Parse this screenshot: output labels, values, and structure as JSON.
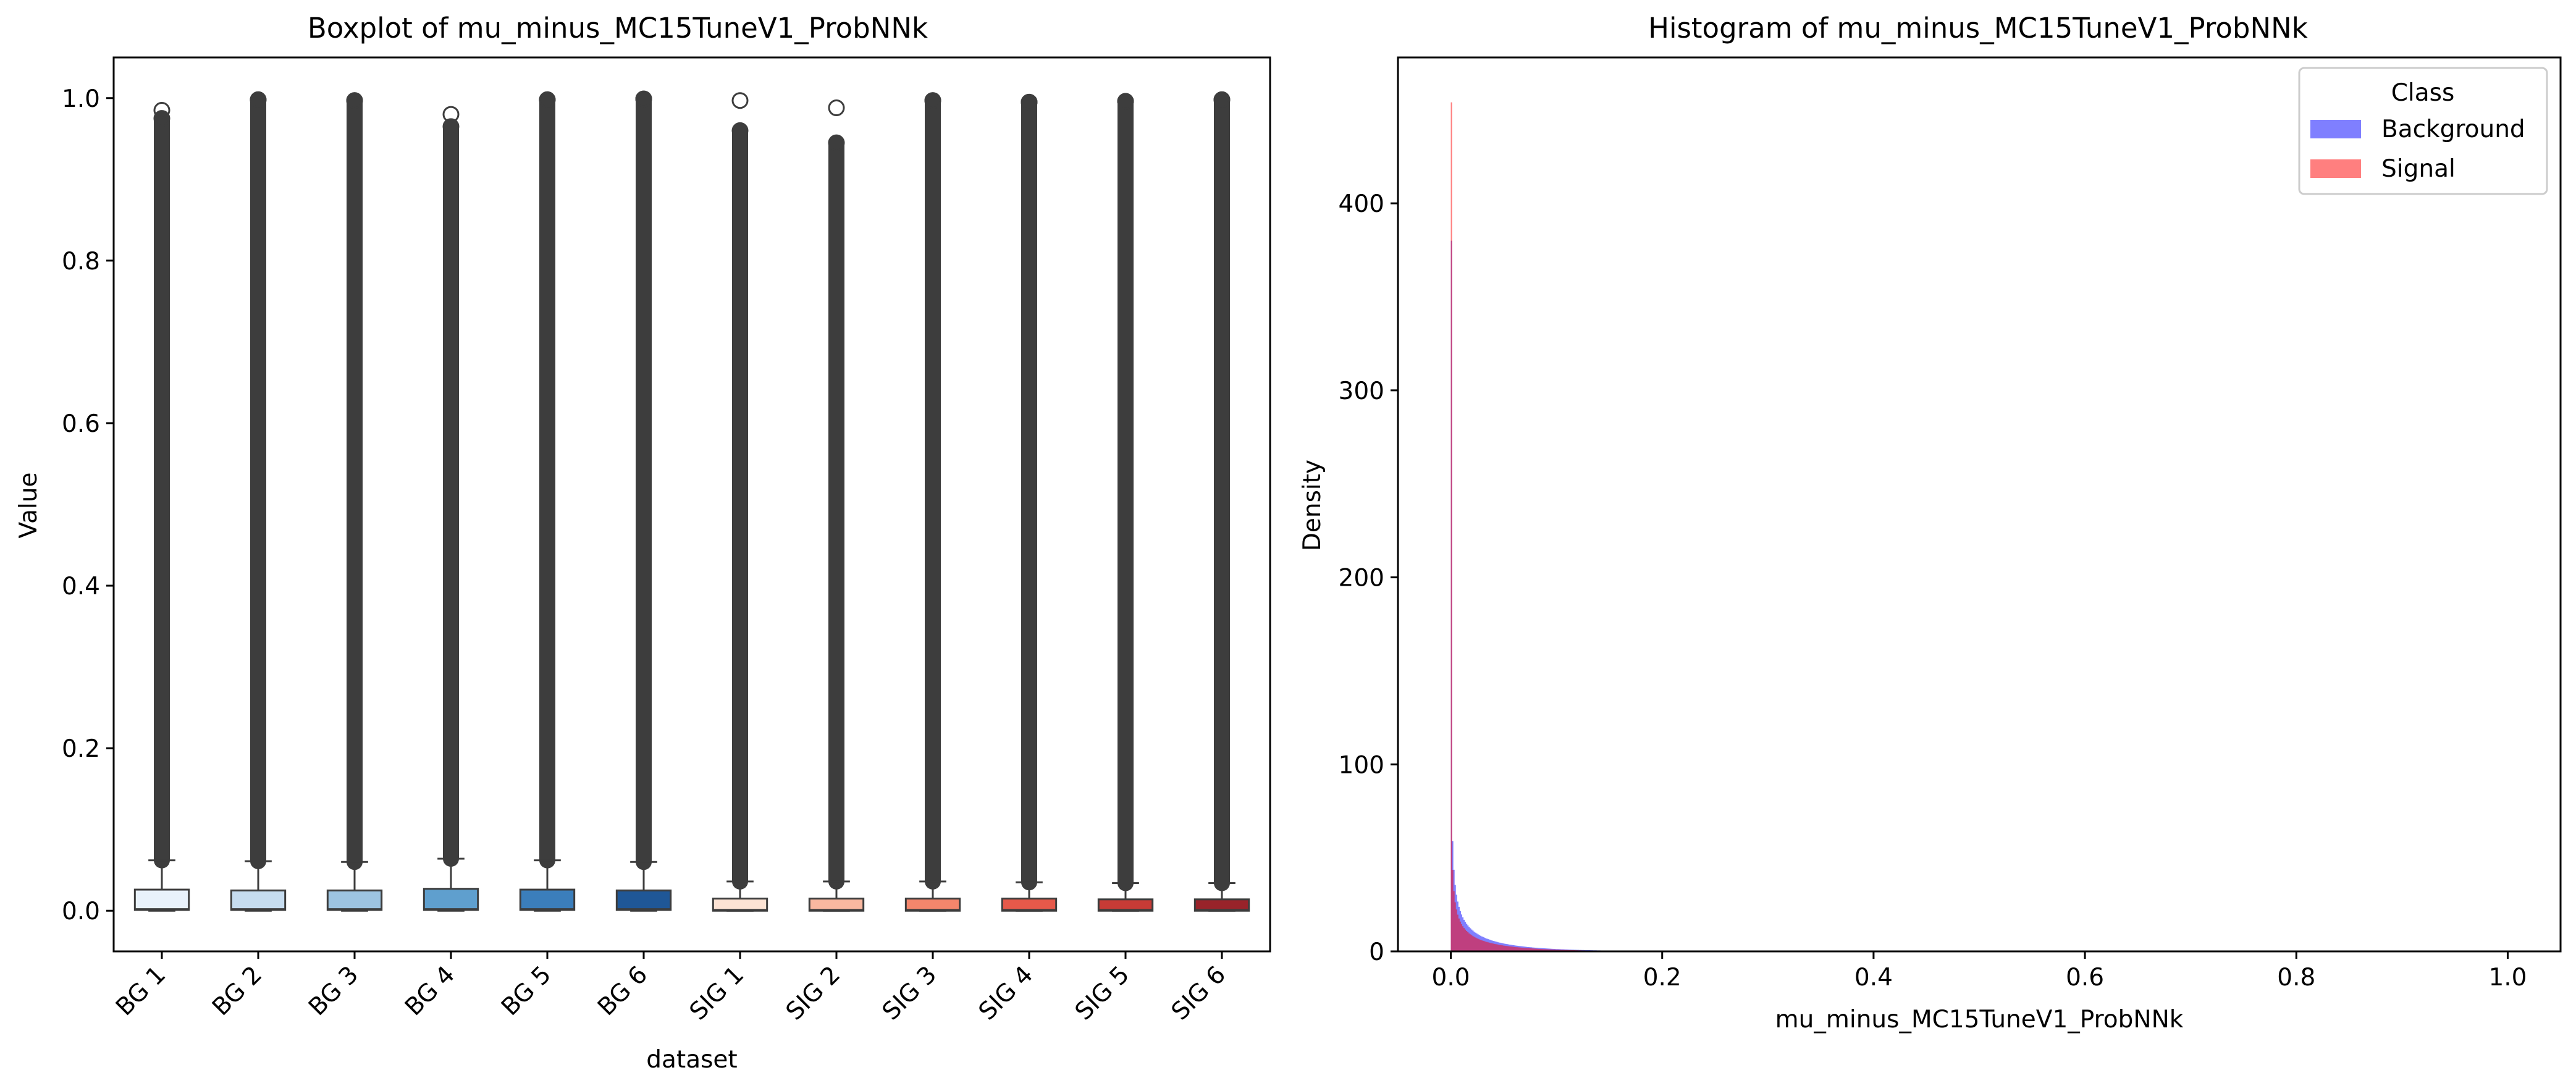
{
  "chart_data": [
    {
      "type": "boxplot",
      "title": "Boxplot of mu_minus_MC15TuneV1_ProbNNk",
      "xlabel": "dataset",
      "ylabel": "Value",
      "ylim": [
        -0.05,
        1.05
      ],
      "yticks": [
        0.0,
        0.2,
        0.4,
        0.6,
        0.8,
        1.0
      ],
      "ytick_labels": [
        "0.0",
        "0.2",
        "0.4",
        "0.6",
        "0.8",
        "1.0"
      ],
      "grid": false,
      "categories": [
        "BG 1",
        "BG 2",
        "BG 3",
        "BG 4",
        "BG 5",
        "BG 6",
        "SIG 1",
        "SIG 2",
        "SIG 3",
        "SIG 4",
        "SIG 5",
        "SIG 6"
      ],
      "boxes": [
        {
          "q1": 0.001,
          "median": 0.002,
          "q3": 0.026,
          "whisker_low": 0.0,
          "whisker_high": 0.062,
          "outlier_min": 0.062,
          "outlier_max": 0.975,
          "outlier_top": 0.985,
          "color": "#e9f2fb"
        },
        {
          "q1": 0.001,
          "median": 0.002,
          "q3": 0.025,
          "whisker_low": 0.0,
          "whisker_high": 0.061,
          "outlier_min": 0.061,
          "outlier_max": 0.998,
          "color": "#c6dcef"
        },
        {
          "q1": 0.001,
          "median": 0.002,
          "q3": 0.025,
          "whisker_low": 0.0,
          "whisker_high": 0.06,
          "outlier_min": 0.06,
          "outlier_max": 0.997,
          "color": "#9dc4e1"
        },
        {
          "q1": 0.001,
          "median": 0.002,
          "q3": 0.027,
          "whisker_low": 0.0,
          "whisker_high": 0.064,
          "outlier_min": 0.064,
          "outlier_max": 0.965,
          "outlier_top": 0.98,
          "color": "#5f9fce"
        },
        {
          "q1": 0.001,
          "median": 0.002,
          "q3": 0.026,
          "whisker_low": 0.0,
          "whisker_high": 0.062,
          "outlier_min": 0.062,
          "outlier_max": 0.998,
          "color": "#3b7ebb"
        },
        {
          "q1": 0.001,
          "median": 0.002,
          "q3": 0.025,
          "whisker_low": 0.0,
          "whisker_high": 0.06,
          "outlier_min": 0.06,
          "outlier_max": 0.999,
          "color": "#1f5797"
        },
        {
          "q1": 0.0,
          "median": 0.001,
          "q3": 0.015,
          "whisker_low": 0.0,
          "whisker_high": 0.036,
          "outlier_min": 0.036,
          "outlier_max": 0.96,
          "outlier_top": 0.997,
          "color": "#fde3d4"
        },
        {
          "q1": 0.0,
          "median": 0.001,
          "q3": 0.015,
          "whisker_low": 0.0,
          "whisker_high": 0.036,
          "outlier_min": 0.036,
          "outlier_max": 0.945,
          "outlier_top": 0.988,
          "color": "#f9b8a0"
        },
        {
          "q1": 0.0,
          "median": 0.001,
          "q3": 0.015,
          "whisker_low": 0.0,
          "whisker_high": 0.036,
          "outlier_min": 0.036,
          "outlier_max": 0.997,
          "color": "#f4866c"
        },
        {
          "q1": 0.0,
          "median": 0.001,
          "q3": 0.015,
          "whisker_low": 0.0,
          "whisker_high": 0.035,
          "outlier_min": 0.035,
          "outlier_max": 0.995,
          "color": "#e6594a"
        },
        {
          "q1": 0.0,
          "median": 0.001,
          "q3": 0.014,
          "whisker_low": 0.0,
          "whisker_high": 0.034,
          "outlier_min": 0.034,
          "outlier_max": 0.996,
          "color": "#c73b36"
        },
        {
          "q1": 0.0,
          "median": 0.001,
          "q3": 0.014,
          "whisker_low": 0.0,
          "whisker_high": 0.034,
          "outlier_min": 0.034,
          "outlier_max": 0.998,
          "color": "#99232a"
        }
      ]
    },
    {
      "type": "histogram",
      "title": "Histogram of mu_minus_MC15TuneV1_ProbNNk",
      "xlabel": "mu_minus_MC15TuneV1_ProbNNk",
      "ylabel": "Density",
      "xlim": [
        -0.05,
        1.05
      ],
      "ylim": [
        0,
        478
      ],
      "xticks": [
        0.0,
        0.2,
        0.4,
        0.6,
        0.8,
        1.0
      ],
      "xtick_labels": [
        "0.0",
        "0.2",
        "0.4",
        "0.6",
        "0.8",
        "1.0"
      ],
      "yticks": [
        0,
        100,
        200,
        300,
        400
      ],
      "ytick_labels": [
        "0",
        "100",
        "200",
        "300",
        "400"
      ],
      "grid": false,
      "legend": {
        "title": "Class",
        "position": "upper right"
      },
      "series": [
        {
          "name": "Background",
          "color": "#0000ff",
          "alpha": 0.5,
          "peak_x": 0.0,
          "peak_density": 380,
          "density_at_0p001": 84
        },
        {
          "name": "Signal",
          "color": "#ff0000",
          "alpha": 0.5,
          "peak_x": 0.0,
          "peak_density": 454,
          "density_at_0p001": 62
        }
      ]
    }
  ]
}
